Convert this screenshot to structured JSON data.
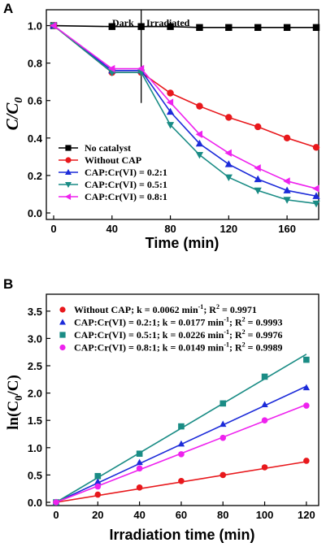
{
  "chart_data": [
    {
      "panel": "A",
      "type": "line",
      "xlabel": "Time (min)",
      "ylabel_main": "C/C",
      "ylabel_sub": "0",
      "xlim": [
        0,
        180
      ],
      "ylim": [
        0,
        1.05
      ],
      "x_ticks": [
        "0",
        "40",
        "80",
        "120",
        "160"
      ],
      "y_ticks": [
        "0.0",
        "0.2",
        "0.4",
        "0.6",
        "0.8",
        "1.0"
      ],
      "annotations": [
        "Dark",
        "Irradiated"
      ],
      "divider_x": 60,
      "legend_placement": "bottom-left",
      "series": [
        {
          "name": "No catalyst",
          "color": "#000000",
          "marker": "square",
          "x": [
            0,
            40,
            60,
            80,
            100,
            120,
            140,
            160,
            180
          ],
          "y": [
            1.0,
            0.995,
            0.995,
            0.995,
            0.99,
            0.99,
            0.99,
            0.99,
            0.99
          ]
        },
        {
          "name": "Without CAP",
          "color": "#e8181c",
          "marker": "circle",
          "x": [
            0,
            40,
            60,
            80,
            100,
            120,
            140,
            160,
            180
          ],
          "y": [
            1.0,
            0.75,
            0.75,
            0.64,
            0.57,
            0.51,
            0.46,
            0.4,
            0.35
          ]
        },
        {
          "name": "CAP:Cr(VI) = 0.2:1",
          "color": "#1c2bd9",
          "marker": "triangle-up",
          "x": [
            0,
            40,
            60,
            80,
            100,
            120,
            140,
            160,
            180
          ],
          "y": [
            1.0,
            0.76,
            0.76,
            0.54,
            0.37,
            0.26,
            0.18,
            0.12,
            0.09
          ]
        },
        {
          "name": "CAP:Cr(VI) = 0.5:1",
          "color": "#1a8c85",
          "marker": "triangle-down",
          "x": [
            0,
            40,
            60,
            80,
            100,
            120,
            140,
            160,
            180
          ],
          "y": [
            1.0,
            0.75,
            0.75,
            0.47,
            0.31,
            0.19,
            0.12,
            0.07,
            0.05
          ]
        },
        {
          "name": "CAP:Cr(VI) = 0.8:1",
          "color": "#ee22ee",
          "marker": "triangle-left",
          "x": [
            0,
            40,
            60,
            80,
            100,
            120,
            140,
            160,
            180
          ],
          "y": [
            1.0,
            0.77,
            0.77,
            0.59,
            0.42,
            0.32,
            0.24,
            0.17,
            0.13
          ]
        }
      ]
    },
    {
      "panel": "B",
      "type": "scatter",
      "xlabel": "Irradiation time (min)",
      "ylabel_main": "ln(C",
      "ylabel_sub": "0",
      "ylabel_tail": "/C)",
      "xlim": [
        0,
        122
      ],
      "ylim": [
        0,
        3.75
      ],
      "x_ticks": [
        "0",
        "20",
        "40",
        "60",
        "80",
        "100",
        "120"
      ],
      "y_ticks": [
        "0.0",
        "0.5",
        "1.0",
        "1.5",
        "2.0",
        "2.5",
        "3.0",
        "3.5"
      ],
      "legend_placement": "top-left",
      "series": [
        {
          "name": "Without CAP; k = 0.0062 min",
          "sup": "-1",
          "r2": "; R",
          "r2sup": "2",
          "r2val": " = 0.9971",
          "color": "#e8181c",
          "marker": "circle",
          "slope": 0.0062,
          "x": [
            0,
            20,
            40,
            60,
            80,
            100,
            120
          ],
          "y": [
            0.0,
            0.14,
            0.27,
            0.39,
            0.5,
            0.64,
            0.76
          ]
        },
        {
          "name": "CAP:Cr(VI) = 0.2:1; k = 0.0177 min",
          "sup": "-1",
          "r2": "; R",
          "r2sup": "2",
          "r2val": " = 0.9993",
          "color": "#1c2bd9",
          "marker": "triangle-up",
          "slope": 0.0177,
          "x": [
            0,
            20,
            40,
            60,
            80,
            100,
            120
          ],
          "y": [
            0.0,
            0.38,
            0.73,
            1.07,
            1.43,
            1.79,
            2.1
          ]
        },
        {
          "name": "CAP:Cr(VI) = 0.5:1; k = 0.0226 min",
          "sup": "-1",
          "r2": "; R",
          "r2sup": "2",
          "r2val": " = 0.9976",
          "color": "#1a8c85",
          "marker": "square",
          "slope": 0.0226,
          "x": [
            0,
            20,
            40,
            60,
            80,
            100,
            120
          ],
          "y": [
            0.0,
            0.48,
            0.89,
            1.39,
            1.81,
            2.3,
            2.61
          ]
        },
        {
          "name": "CAP:Cr(VI) = 0.8:1; k = 0.0149 min",
          "sup": "-1",
          "r2": "; R",
          "r2sup": "2",
          "r2val": " = 0.9989",
          "color": "#ee22ee",
          "marker": "circle",
          "slope": 0.0149,
          "x": [
            0,
            20,
            40,
            60,
            80,
            100,
            120
          ],
          "y": [
            0.0,
            0.29,
            0.62,
            0.88,
            1.18,
            1.5,
            1.77
          ]
        }
      ]
    }
  ]
}
